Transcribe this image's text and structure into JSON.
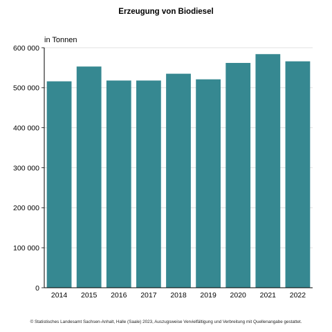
{
  "chart_data": {
    "type": "bar",
    "title": "Erzeugung von Biodiesel",
    "ylabel": "in Tonnen",
    "xlabel": "",
    "categories": [
      "2014",
      "2015",
      "2016",
      "2017",
      "2018",
      "2019",
      "2020",
      "2021",
      "2022"
    ],
    "values": [
      516000,
      553000,
      518000,
      518000,
      535000,
      521000,
      562000,
      584000,
      566000
    ],
    "ylim": [
      0,
      600000
    ],
    "yticks": [
      0,
      100000,
      200000,
      300000,
      400000,
      500000,
      600000
    ],
    "ytick_labels": [
      "0",
      "100 000",
      "200 000",
      "300 000",
      "400 000",
      "500 000",
      "600 000"
    ],
    "bar_color": "#368891",
    "grid": true,
    "legend": "none"
  },
  "footer": "© Statistisches Landesamt Sachsen-Anhalt, Halle (Saale) 2023, Auszugsweise Vervielfältigung und Verbreitung mit Quellenangabe gestattet."
}
